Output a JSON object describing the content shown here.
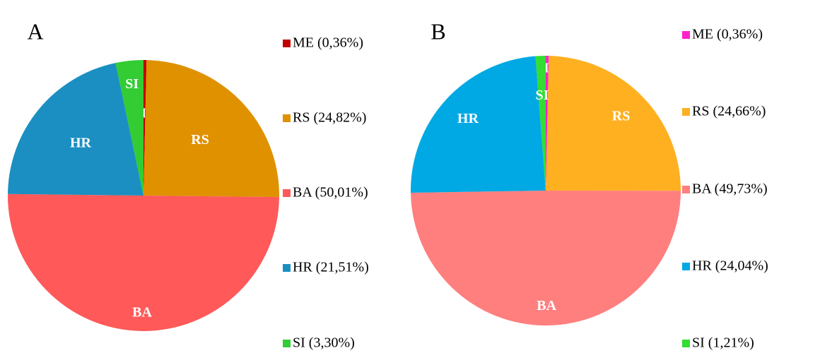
{
  "chart_data": [
    {
      "type": "pie",
      "title": "A",
      "categories": [
        "ME",
        "RS",
        "BA",
        "HR",
        "SI"
      ],
      "values": [
        0.36,
        24.82,
        50.01,
        21.51,
        3.3
      ],
      "value_labels": [
        "ME (0,36%)",
        "RS (24,82%)",
        "BA (50,01%)",
        "HR (21,51%)",
        "SI (3,30%)"
      ],
      "colors": [
        "#c00000",
        "#df9100",
        "#ff5959",
        "#1b8fc1",
        "#33cc33"
      ]
    },
    {
      "type": "pie",
      "title": "B",
      "categories": [
        "ME",
        "RS",
        "BA",
        "HR",
        "SI"
      ],
      "values": [
        0.36,
        24.66,
        49.73,
        24.04,
        1.21
      ],
      "value_labels": [
        "ME (0,36%)",
        "RS (24,66%)",
        "BA (49,73%)",
        "HR (24,04%)",
        "SI (1,21%)"
      ],
      "colors": [
        "#ff22cc",
        "#ffb021",
        "#ff7f7f",
        "#00a9e3",
        "#33dd33"
      ]
    }
  ]
}
